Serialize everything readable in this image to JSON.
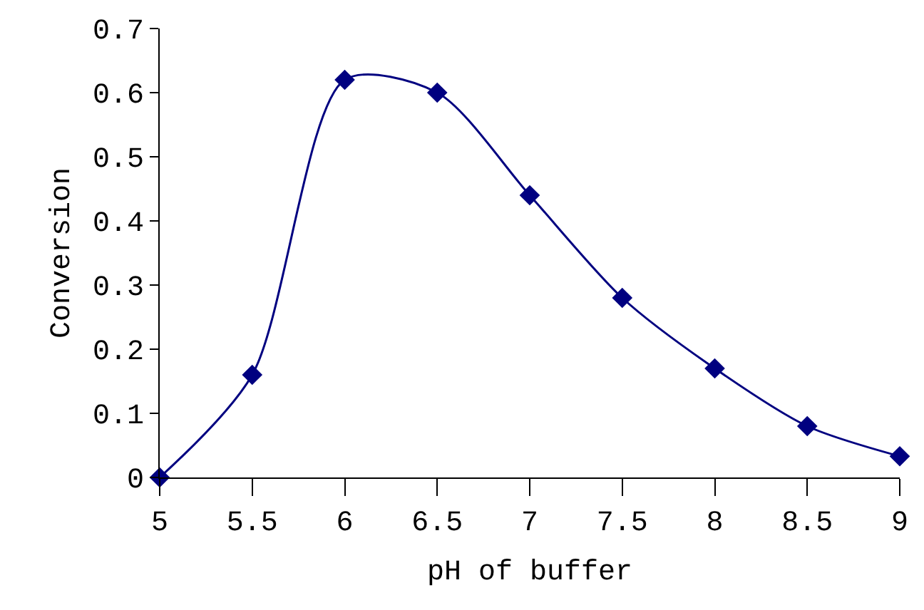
{
  "chart_data": {
    "type": "line",
    "xlabel": "pH of buffer",
    "ylabel": "Conversion",
    "x": [
      5,
      5.5,
      6,
      6.5,
      7,
      7.5,
      8,
      8.5,
      9
    ],
    "series": [
      {
        "color": "#000080",
        "values": [
          0,
          0.16,
          0.62,
          0.6,
          0.44,
          0.28,
          0.17,
          0.08,
          0.033
        ]
      }
    ],
    "xlim": [
      5,
      9
    ],
    "xticks": [
      5,
      5.5,
      6,
      6.5,
      7,
      7.5,
      8,
      8.5,
      9
    ],
    "ylim": [
      0,
      0.7
    ],
    "yticks": [
      0,
      0.1,
      0.2,
      0.3,
      0.4,
      0.5,
      0.6,
      0.7
    ],
    "marker": "diamond"
  }
}
